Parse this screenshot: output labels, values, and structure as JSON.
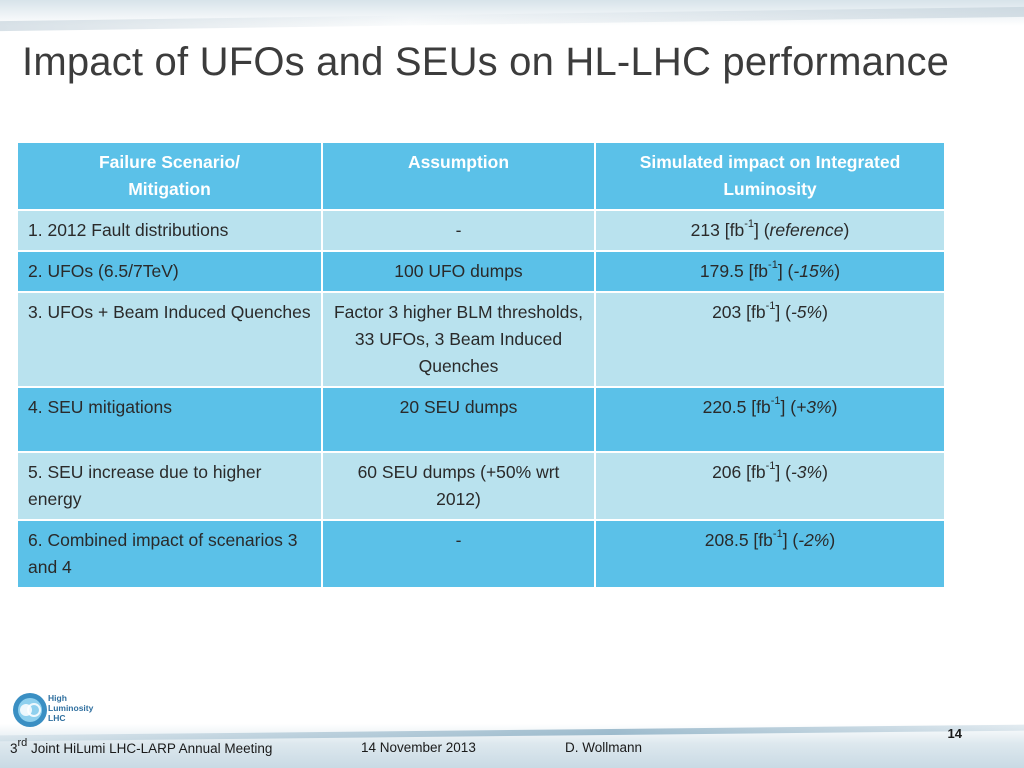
{
  "title": "Impact of UFOs and SEUs on HL-LHC performance",
  "table": {
    "headers": [
      "Failure Scenario/",
      "Mitigation",
      "Assumption",
      "Simulated impact on Integrated",
      "Luminosity"
    ],
    "rows": [
      {
        "scenario": "1. 2012 Fault distributions",
        "assumption": "-",
        "impact_value": "213 [fb",
        "impact_sup": "-1",
        "impact_close": "] (",
        "impact_note": "reference",
        "impact_end": ")"
      },
      {
        "scenario": "2. UFOs (6.5/7TeV)",
        "assumption": "100 UFO dumps",
        "impact_value": "179.5 [fb",
        "impact_sup": "-1",
        "impact_close": "] (",
        "impact_note": "-15%",
        "impact_end": ")"
      },
      {
        "scenario": "3. UFOs + Beam Induced Quenches",
        "assumption": "Factor 3 higher BLM thresholds, 33 UFOs, 3 Beam Induced Quenches",
        "impact_value": "203 [fb",
        "impact_sup": "-1",
        "impact_close": "] (",
        "impact_note": "-5%",
        "impact_end": ")"
      },
      {
        "scenario": "4. SEU mitigations",
        "assumption": "20 SEU dumps",
        "impact_value": "220.5 [fb",
        "impact_sup": "-1",
        "impact_close": "] (",
        "impact_note": "+3%",
        "impact_end": ")"
      },
      {
        "scenario": "5. SEU increase due to higher energy",
        "assumption": "60 SEU dumps (+50% wrt 2012)",
        "impact_value": "206 [fb",
        "impact_sup": "-1",
        "impact_close": "] (",
        "impact_note": "-3%",
        "impact_end": ")"
      },
      {
        "scenario": "6. Combined impact of scenarios 3 and 4",
        "assumption": "-",
        "impact_value": "208.5 [fb",
        "impact_sup": "-1",
        "impact_close": "] (",
        "impact_note": "-2%",
        "impact_end": ")"
      }
    ]
  },
  "logo": {
    "line1": "High",
    "line2": "Luminosity",
    "line3": "LHC"
  },
  "footer": {
    "meeting_prefix": "3",
    "meeting_sup": "rd",
    "meeting_rest": " Joint HiLumi LHC-LARP Annual Meeting",
    "date": "14 November 2013",
    "author": "D. Wollmann",
    "page": "14"
  },
  "colors": {
    "header_bg": "#5bc1e8",
    "light_row": "#b9e2ee",
    "dark_row": "#5bc1e8",
    "title_text": "#3c3c3c"
  }
}
